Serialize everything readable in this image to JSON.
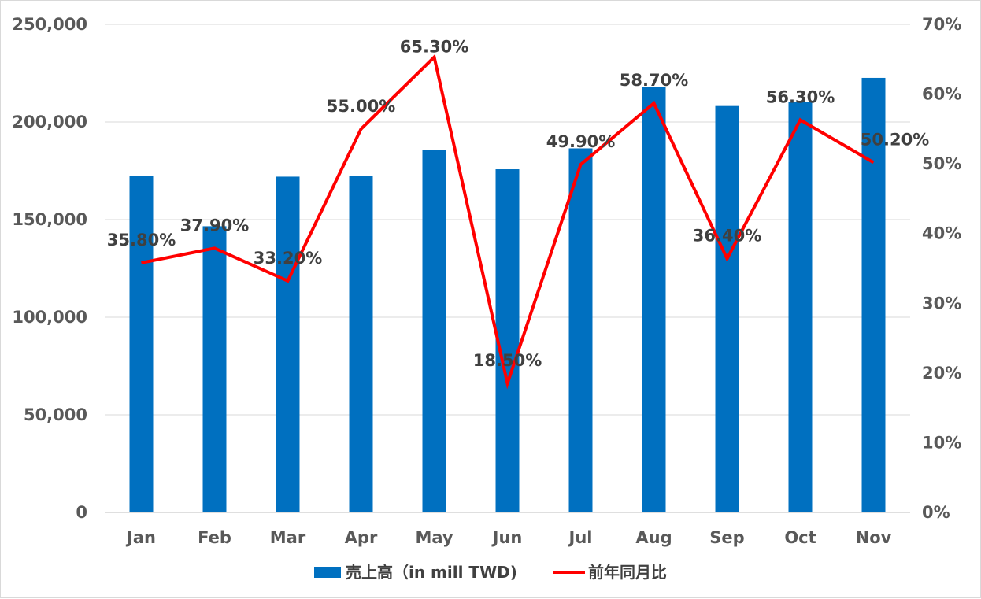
{
  "chart_data": {
    "type": "bar",
    "title": "",
    "categories": [
      "Jan",
      "Feb",
      "Mar",
      "Apr",
      "May",
      "Jun",
      "Jul",
      "Aug",
      "Sep",
      "Oct",
      "Nov"
    ],
    "series": [
      {
        "name": "売上高（in mill TWD)",
        "type": "bar",
        "axis": "left",
        "color": "#0070C0",
        "values": [
          172200,
          146600,
          172000,
          172500,
          185800,
          175800,
          186500,
          217800,
          208200,
          210400,
          222600
        ]
      },
      {
        "name": "前年同月比",
        "type": "line",
        "axis": "right",
        "color": "#FF0000",
        "values": [
          35.8,
          37.9,
          33.2,
          55.0,
          65.3,
          18.5,
          49.9,
          58.7,
          36.4,
          56.3,
          50.2
        ],
        "labels": [
          "35.80%",
          "37.90%",
          "33.20%",
          "55.00%",
          "65.30%",
          "18.50%",
          "49.90%",
          "58.70%",
          "36.40%",
          "56.30%",
          "50.20%"
        ]
      }
    ],
    "y_left": {
      "ylim": [
        0,
        250000
      ],
      "ticks": [
        0,
        50000,
        100000,
        150000,
        200000,
        250000
      ],
      "tick_labels": [
        "0",
        "50,000",
        "100,000",
        "150,000",
        "200,000",
        "250,000"
      ]
    },
    "y_right": {
      "ylim": [
        0,
        70
      ],
      "ticks": [
        0,
        10,
        20,
        30,
        40,
        50,
        60,
        70
      ],
      "tick_labels": [
        "0%",
        "10%",
        "20%",
        "30%",
        "40%",
        "50%",
        "60%",
        "70%"
      ]
    },
    "grid": true,
    "legend_position": "bottom"
  }
}
